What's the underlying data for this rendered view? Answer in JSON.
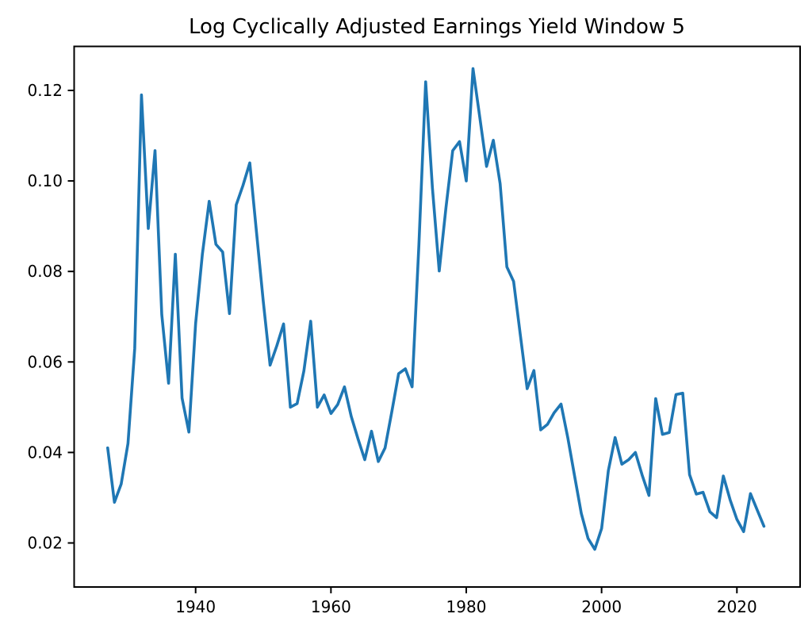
{
  "chart_data": {
    "type": "line",
    "title": "Log Cyclically Adjusted Earnings Yield Window 5",
    "xlabel": "",
    "ylabel": "",
    "grid": false,
    "legend": null,
    "line_color": "#1f77b4",
    "xlim": [
      1922,
      2029
    ],
    "ylim": [
      0.0103,
      0.1297
    ],
    "x_ticks": [
      1940,
      1960,
      1980,
      2000,
      2020
    ],
    "x_tick_labels": [
      "1940",
      "1960",
      "1980",
      "2000",
      "2020"
    ],
    "y_ticks": [
      0.02,
      0.04,
      0.06,
      0.08,
      0.1,
      0.12
    ],
    "y_tick_labels": [
      "0.02",
      "0.04",
      "0.06",
      "0.08",
      "0.10",
      "0.12"
    ],
    "series": [
      {
        "name": "log-cyclically-adjusted-earnings-yield-window-5",
        "x": [
          1927,
          1928,
          1929,
          1930,
          1931,
          1932,
          1933,
          1934,
          1935,
          1936,
          1937,
          1938,
          1939,
          1940,
          1941,
          1942,
          1943,
          1944,
          1945,
          1946,
          1947,
          1948,
          1949,
          1950,
          1951,
          1952,
          1953,
          1954,
          1955,
          1956,
          1957,
          1958,
          1959,
          1960,
          1961,
          1962,
          1963,
          1964,
          1965,
          1966,
          1967,
          1968,
          1969,
          1970,
          1971,
          1972,
          1973,
          1974,
          1975,
          1976,
          1977,
          1978,
          1979,
          1980,
          1981,
          1982,
          1983,
          1984,
          1985,
          1986,
          1987,
          1988,
          1989,
          1990,
          1991,
          1992,
          1993,
          1994,
          1995,
          1996,
          1997,
          1998,
          1999,
          2000,
          2001,
          2002,
          2003,
          2004,
          2005,
          2006,
          2007,
          2008,
          2009,
          2010,
          2011,
          2012,
          2013,
          2014,
          2015,
          2016,
          2017,
          2018,
          2019,
          2020,
          2021,
          2022,
          2023,
          2024
        ],
        "y": [
          0.041,
          0.029,
          0.033,
          0.042,
          0.063,
          0.119,
          0.0895,
          0.1067,
          0.0705,
          0.0553,
          0.0838,
          0.052,
          0.0445,
          0.0685,
          0.0838,
          0.0955,
          0.086,
          0.0843,
          0.0707,
          0.0947,
          0.099,
          0.104,
          0.0886,
          0.0734,
          0.0593,
          0.0636,
          0.0684,
          0.05,
          0.0508,
          0.058,
          0.069,
          0.05,
          0.0527,
          0.0486,
          0.0506,
          0.0545,
          0.048,
          0.043,
          0.0384,
          0.0447,
          0.038,
          0.041,
          0.049,
          0.0574,
          0.0585,
          0.0545,
          0.086,
          0.1219,
          0.0985,
          0.0801,
          0.0941,
          0.1067,
          0.1087,
          0.1,
          0.1248,
          0.114,
          0.1032,
          0.109,
          0.0994,
          0.081,
          0.0778,
          0.0658,
          0.0541,
          0.0581,
          0.045,
          0.0462,
          0.0488,
          0.0507,
          0.0433,
          0.0349,
          0.0265,
          0.021,
          0.0186,
          0.0232,
          0.036,
          0.0433,
          0.0374,
          0.0384,
          0.04,
          0.035,
          0.0305,
          0.0519,
          0.044,
          0.0444,
          0.0528,
          0.0531,
          0.0351,
          0.0308,
          0.0312,
          0.0269,
          0.0256,
          0.0348,
          0.0295,
          0.0252,
          0.0225,
          0.0309,
          0.0273,
          0.0237
        ]
      }
    ]
  }
}
